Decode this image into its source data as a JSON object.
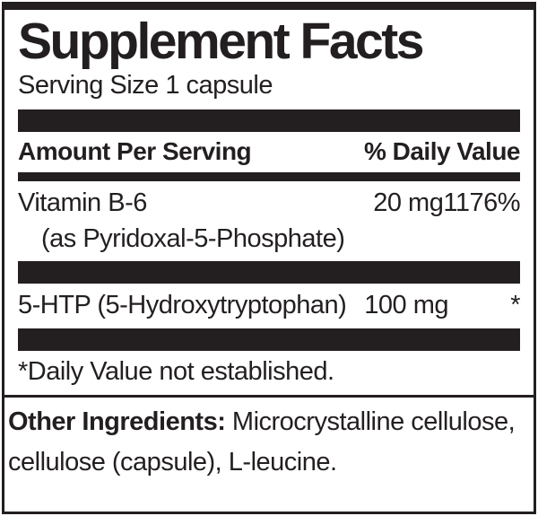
{
  "label": {
    "title": "Supplement Facts",
    "serving_size": "Serving Size 1 capsule",
    "header": {
      "amount": "Amount Per Serving",
      "daily_value": "% Daily Value"
    },
    "rows": [
      {
        "name": "Vitamin B-6",
        "detail": "(as Pyridoxal-5-Phosphate)",
        "amount": "20 mg",
        "dv": "1176%"
      },
      {
        "name": "5-HTP (5-Hydroxytryptophan)",
        "amount": "100 mg",
        "dv": "*"
      }
    ],
    "footnote": "*Daily Value not established.",
    "other_ingredients": {
      "label": "Other Ingredients:",
      "text": " Microcrystalline cellulose, cellulose (capsule), L-leucine."
    }
  },
  "colors": {
    "ink": "#231f20",
    "background": "#ffffff"
  }
}
